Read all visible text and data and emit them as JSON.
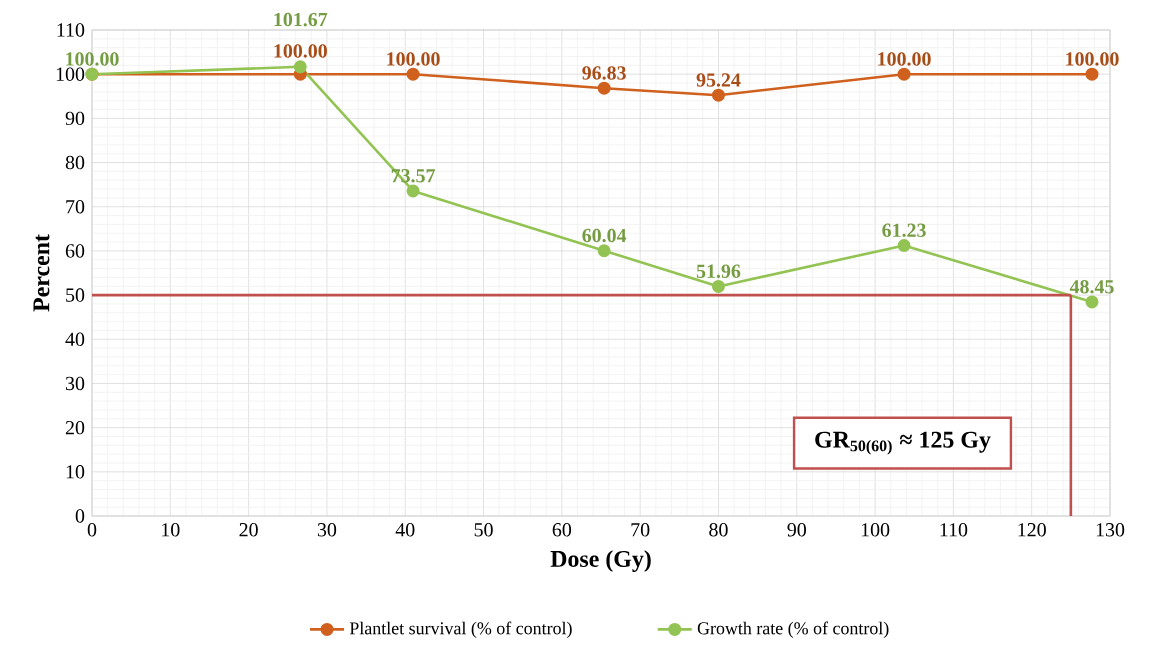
{
  "chart_data": {
    "type": "line",
    "xlabel": "Dose (Gy)",
    "ylabel": "Percent",
    "x": [
      0,
      26.6,
      41,
      65.4,
      80,
      103.7,
      127.7
    ],
    "series": [
      {
        "name": "Plantlet survival (% of control)",
        "color": "#d0601e",
        "values": [
          100,
          100,
          100,
          96.83,
          95.24,
          100,
          100
        ],
        "value_labels": [
          null,
          "100.00",
          "100.00",
          "96.83",
          "95.24",
          "100.00",
          "100.00"
        ]
      },
      {
        "name": "Growth rate (% of control)",
        "color": "#92c353",
        "values": [
          100,
          101.67,
          73.57,
          60.04,
          51.96,
          61.23,
          48.45
        ],
        "value_labels": [
          "100.00",
          "101.67",
          "73.57",
          "60.04",
          "51.96",
          "61.23",
          "48.45"
        ]
      }
    ],
    "xlim": [
      0,
      130
    ],
    "xticks": [
      0,
      10,
      20,
      30,
      40,
      50,
      60,
      70,
      80,
      90,
      100,
      110,
      120,
      130
    ],
    "ylim": [
      0,
      110
    ],
    "yticks": [
      0,
      10,
      20,
      30,
      40,
      50,
      60,
      70,
      80,
      90,
      100,
      110
    ],
    "ref_lines": [
      {
        "axis": "y",
        "value": 50,
        "color": "#c0504d"
      },
      {
        "axis": "x",
        "value": 125,
        "color": "#c0504d"
      }
    ],
    "annotations": [
      "**GR$_{50(60)}$ ≈ 125 Gy**"
    ],
    "grid": true,
    "legend": "bottom",
    "marker": "circle",
    "line_style": "solid"
  }
}
